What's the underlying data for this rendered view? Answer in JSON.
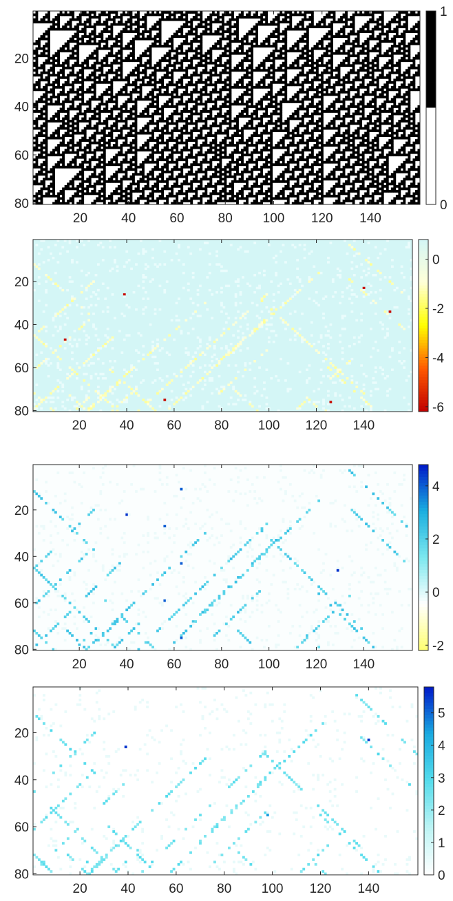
{
  "chart_data": [
    {
      "type": "heatmap",
      "title": "",
      "xlabel": "",
      "ylabel": "",
      "x_ticks": [
        "20",
        "40",
        "60",
        "80",
        "100",
        "120",
        "140"
      ],
      "y_ticks": [
        "20",
        "40",
        "60",
        "80"
      ],
      "xlim": [
        1,
        160
      ],
      "ylim": [
        1,
        80
      ],
      "colorbar": {
        "ticks": [
          "0",
          "1"
        ],
        "range": [
          0,
          1
        ],
        "colormap": "gray",
        "colors": [
          "#ffffff",
          "#000000"
        ]
      },
      "pattern": "elementary cellular automaton space-time diagram (binary 0/1), triangle structures"
    },
    {
      "type": "heatmap",
      "title": "",
      "xlabel": "",
      "ylabel": "",
      "x_ticks": [
        "20",
        "40",
        "60",
        "80",
        "100",
        "120",
        "140"
      ],
      "y_ticks": [
        "20",
        "40",
        "60",
        "80"
      ],
      "xlim": [
        1,
        160
      ],
      "ylim": [
        1,
        80
      ],
      "colorbar": {
        "ticks": [
          "0",
          "-2",
          "-4",
          "-6"
        ],
        "range": [
          -6.2,
          0.8
        ],
        "colormap": "hot-to-cyan",
        "colors": [
          "#c00000",
          "#ff5a00",
          "#ffff00",
          "#ffffd8",
          "#d4f6f6"
        ]
      },
      "hotspots": [
        {
          "x": 39,
          "y": 26,
          "value": -6
        },
        {
          "x": 14,
          "y": 47,
          "value": -6
        },
        {
          "x": 56,
          "y": 75,
          "value": -6
        },
        {
          "x": 126,
          "y": 76,
          "value": -6
        },
        {
          "x": 140,
          "y": 23,
          "value": -6
        },
        {
          "x": 151,
          "y": 34,
          "value": -6
        }
      ]
    },
    {
      "type": "heatmap",
      "title": "",
      "xlabel": "",
      "ylabel": "",
      "x_ticks": [
        "20",
        "40",
        "60",
        "80",
        "100",
        "120",
        "140"
      ],
      "y_ticks": [
        "20",
        "40",
        "60",
        "80"
      ],
      "xlim": [
        1,
        160
      ],
      "ylim": [
        1,
        80
      ],
      "colorbar": {
        "ticks": [
          "4",
          "2",
          "0",
          "-2"
        ],
        "range": [
          -2.2,
          4.8
        ],
        "colormap": "yellow-white-cyan-blue",
        "colors": [
          "#ffff70",
          "#ffffff",
          "#7ce8ee",
          "#1aaee0",
          "#0018c8"
        ]
      },
      "hotspots": [
        {
          "x": 40,
          "y": 22,
          "value": 4.5
        },
        {
          "x": 129,
          "y": 46,
          "value": 4.5
        },
        {
          "x": 63,
          "y": 11,
          "value": 4
        },
        {
          "x": 56,
          "y": 59,
          "value": 4
        },
        {
          "x": 63,
          "y": 75,
          "value": 4
        },
        {
          "x": 56,
          "y": 27,
          "value": 4
        },
        {
          "x": 63,
          "y": 43,
          "value": 4
        }
      ]
    },
    {
      "type": "heatmap",
      "title": "",
      "xlabel": "",
      "ylabel": "",
      "x_ticks": [
        "20",
        "40",
        "60",
        "80",
        "100",
        "120",
        "140"
      ],
      "y_ticks": [
        "20",
        "40",
        "60",
        "80"
      ],
      "xlim": [
        1,
        160
      ],
      "ylim": [
        1,
        80
      ],
      "colorbar": {
        "ticks": [
          "5",
          "4",
          "3",
          "2",
          "1",
          "0"
        ],
        "range": [
          0,
          5.8
        ],
        "colormap": "white-cyan-blue",
        "colors": [
          "#ffffff",
          "#bdf4f4",
          "#55dcec",
          "#1aaae0",
          "#0018c8"
        ]
      },
      "hotspots": [
        {
          "x": 39,
          "y": 26,
          "value": 5.5
        },
        {
          "x": 140,
          "y": 23,
          "value": 5.5
        },
        {
          "x": 98,
          "y": 55,
          "value": 4.5
        }
      ]
    }
  ]
}
